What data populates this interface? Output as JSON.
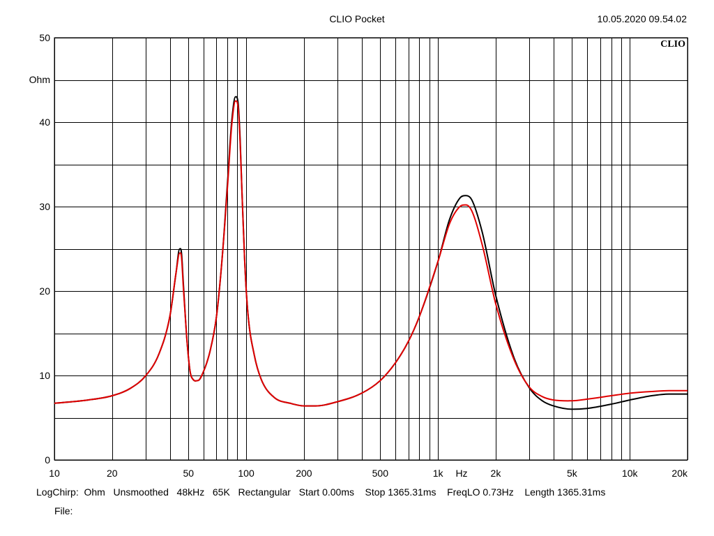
{
  "header": {
    "title": "CLIO Pocket",
    "timestamp": "10.05.2020 09.54.02",
    "logo_text": "CLIO"
  },
  "footer": {
    "info": "LogChirp:  Ohm   Unsmoothed   48kHz   65K   Rectangular   Start 0.00ms    Stop 1365.31ms    FreqLO 0.73Hz    Length 1365.31ms",
    "file": "File:"
  },
  "chart_data": {
    "type": "line",
    "title": "CLIO Pocket",
    "xlabel": "Hz",
    "ylabel": "Ohm",
    "xscale": "log",
    "xlim": [
      10,
      20000
    ],
    "ylim": [
      0,
      50
    ],
    "grid": true,
    "x_ticks": [
      {
        "value": 10,
        "label": "10"
      },
      {
        "value": 20,
        "label": "20"
      },
      {
        "value": 50,
        "label": "50"
      },
      {
        "value": 100,
        "label": "100"
      },
      {
        "value": 200,
        "label": "200"
      },
      {
        "value": 500,
        "label": "500"
      },
      {
        "value": 1000,
        "label": "1k"
      },
      {
        "value": 2000,
        "label": "2k"
      },
      {
        "value": 5000,
        "label": "5k"
      },
      {
        "value": 10000,
        "label": "10k"
      },
      {
        "value": 20000,
        "label": "20k"
      }
    ],
    "y_ticks": [
      {
        "value": 0,
        "label": "0"
      },
      {
        "value": 10,
        "label": "10"
      },
      {
        "value": 20,
        "label": "20"
      },
      {
        "value": 30,
        "label": "30"
      },
      {
        "value": 40,
        "label": "40"
      },
      {
        "value": 50,
        "label": "50"
      }
    ],
    "series": [
      {
        "color": "#000000",
        "x": [
          10,
          15,
          20,
          25,
          30,
          35,
          40,
          43,
          45,
          46,
          47,
          49,
          51,
          53,
          56,
          60,
          65,
          70,
          75,
          80,
          84,
          88,
          91,
          93,
          95,
          98,
          102,
          110,
          120,
          140,
          170,
          200,
          230,
          300,
          400,
          500,
          600,
          700,
          800,
          1000,
          1150,
          1300,
          1400,
          1500,
          1700,
          2000,
          2500,
          3000,
          3500,
          4000,
          5000,
          6000,
          8000,
          10000,
          13000,
          16000,
          20000
        ],
        "y": [
          6.7,
          7.1,
          7.6,
          8.5,
          10.0,
          12.5,
          17.0,
          22.0,
          25.0,
          24.5,
          21.0,
          14.5,
          10.5,
          9.5,
          9.4,
          10.5,
          13.0,
          17.0,
          24.0,
          33.0,
          40.0,
          43.0,
          42.0,
          38.0,
          32.0,
          24.0,
          17.5,
          12.5,
          9.5,
          7.4,
          6.7,
          6.4,
          6.4,
          6.9,
          7.9,
          9.4,
          11.5,
          14.0,
          17.0,
          23.5,
          28.5,
          31.0,
          31.3,
          30.8,
          27.0,
          19.5,
          12.0,
          8.5,
          7.0,
          6.4,
          6.0,
          6.1,
          6.6,
          7.1,
          7.6,
          7.8,
          7.8
        ]
      },
      {
        "color": "#e00000",
        "x": [
          10,
          15,
          20,
          25,
          30,
          35,
          40,
          43,
          45,
          46,
          47,
          49,
          51,
          53,
          56,
          60,
          65,
          70,
          75,
          80,
          84,
          88,
          91,
          93,
          95,
          98,
          102,
          110,
          120,
          140,
          170,
          200,
          230,
          300,
          400,
          500,
          600,
          700,
          800,
          1000,
          1150,
          1300,
          1400,
          1500,
          1700,
          2000,
          2500,
          3000,
          3500,
          4000,
          5000,
          6000,
          8000,
          10000,
          13000,
          16000,
          20000
        ],
        "y": [
          6.7,
          7.1,
          7.6,
          8.5,
          10.0,
          12.5,
          17.0,
          22.0,
          24.5,
          24.0,
          20.5,
          14.5,
          10.5,
          9.5,
          9.4,
          10.5,
          13.0,
          17.0,
          24.0,
          32.5,
          39.5,
          42.5,
          41.5,
          37.5,
          32.0,
          24.0,
          17.5,
          12.5,
          9.5,
          7.4,
          6.7,
          6.4,
          6.4,
          6.9,
          7.9,
          9.4,
          11.5,
          14.0,
          17.0,
          23.5,
          28.0,
          30.0,
          30.2,
          29.5,
          25.5,
          18.5,
          11.8,
          8.6,
          7.5,
          7.1,
          7.0,
          7.2,
          7.6,
          7.9,
          8.1,
          8.2,
          8.2
        ]
      }
    ]
  }
}
